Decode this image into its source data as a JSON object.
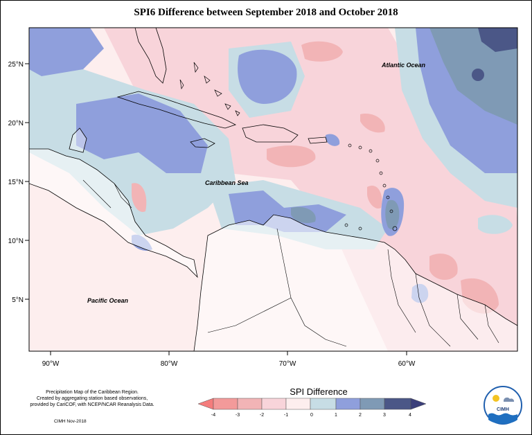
{
  "title": "SPI6 Difference between September 2018 and October 2018",
  "map": {
    "lat_labels": [
      "25°N",
      "20°N",
      "15°N",
      "10°N",
      "5°N"
    ],
    "lon_labels": [
      "90°W",
      "80°W",
      "70°W",
      "60°W"
    ],
    "place_labels": {
      "atlantic": "Atlantic Ocean",
      "caribbean": "Caribbean Sea",
      "pacific": "Pacific Ocean"
    }
  },
  "legend": {
    "title": "SPI Difference",
    "ticks": [
      "-4",
      "-3",
      "-2",
      "-1",
      "0",
      "1",
      "2",
      "3",
      "4"
    ],
    "colors": [
      "#f47c7c",
      "#f39a9a",
      "#f2b4b6",
      "#f8d4da",
      "#fdeeee",
      "#c7dde5",
      "#8f9fdc",
      "#7f9ab5",
      "#4b5787"
    ]
  },
  "credits": {
    "line1": "Precipitation Map of the Caribbean Region.",
    "line2": "Created by aggregating station based observations,",
    "line3": "provided by CariCOF, with NCEP/NCAR Reanalysis Data.",
    "date": "CIMH Nov-2018"
  },
  "logo": {
    "text": "CIMH"
  }
}
